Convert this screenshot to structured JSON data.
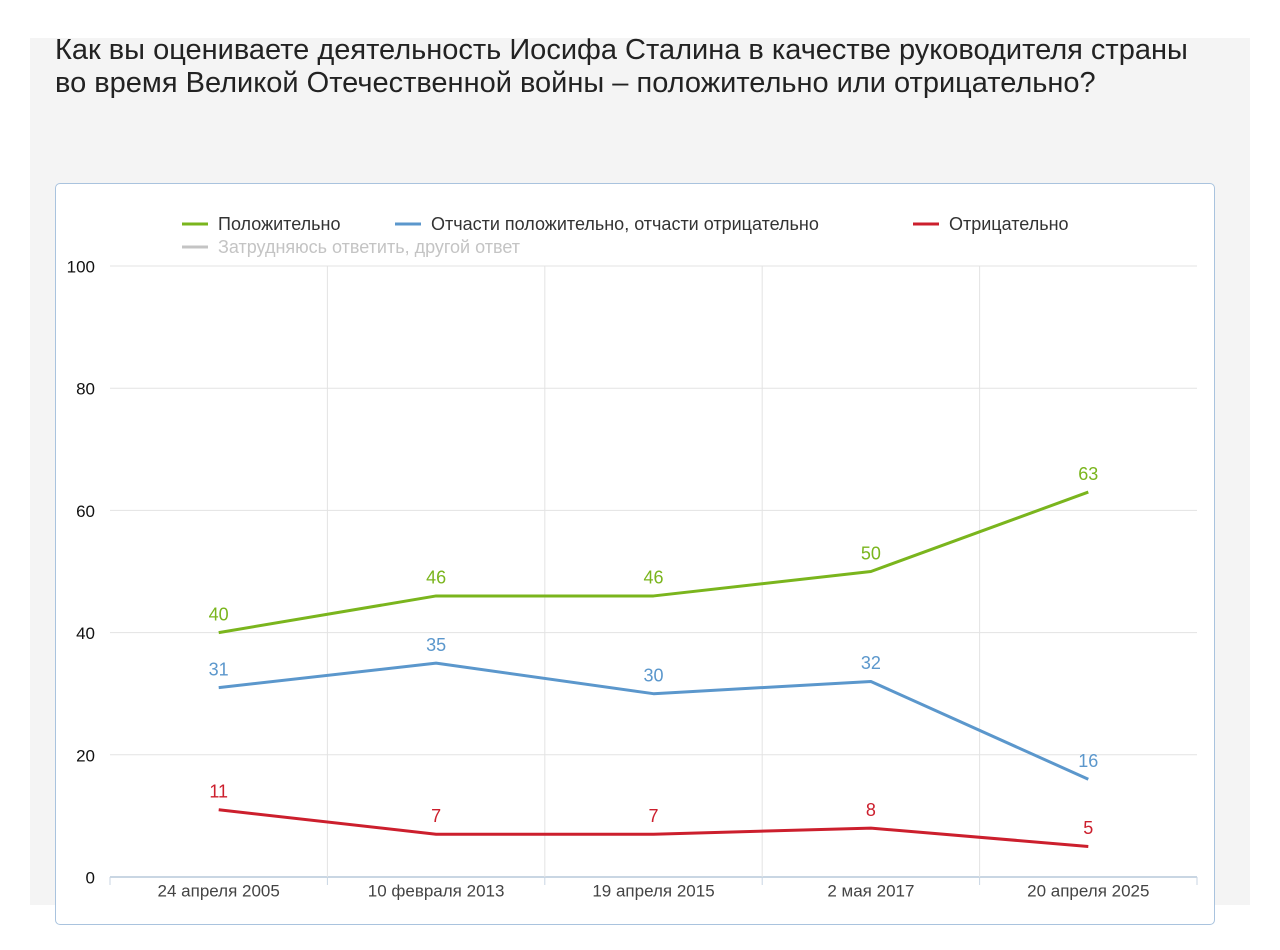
{
  "chart_data": {
    "type": "line",
    "title": "Как вы оцениваете деятельность Иосифа Сталина в качестве руководителя страны во время Великой Отечественной войны – положительно или отрицательно?",
    "categories": [
      "24 апреля 2005",
      "10 февраля 2013",
      "19 апреля 2015",
      "2 мая 2017",
      "20 апреля 2025"
    ],
    "series": [
      {
        "name": "Положительно",
        "color": "#7ab51d",
        "values": [
          40,
          46,
          46,
          50,
          63
        ]
      },
      {
        "name": "Отчасти положительно, отчасти отрицательно",
        "color": "#5b97cc",
        "values": [
          31,
          35,
          30,
          32,
          16
        ]
      },
      {
        "name": "Отрицательно",
        "color": "#cc1f2d",
        "values": [
          11,
          7,
          7,
          8,
          5
        ]
      },
      {
        "name": "Затрудняюсь ответить, другой ответ",
        "color": "#c4c4c4",
        "hidden": true,
        "values": [
          null,
          null,
          null,
          null,
          null
        ]
      }
    ],
    "ylim": [
      0,
      100
    ],
    "yticks": [
      0,
      20,
      40,
      60,
      80,
      100
    ],
    "grid": true
  }
}
